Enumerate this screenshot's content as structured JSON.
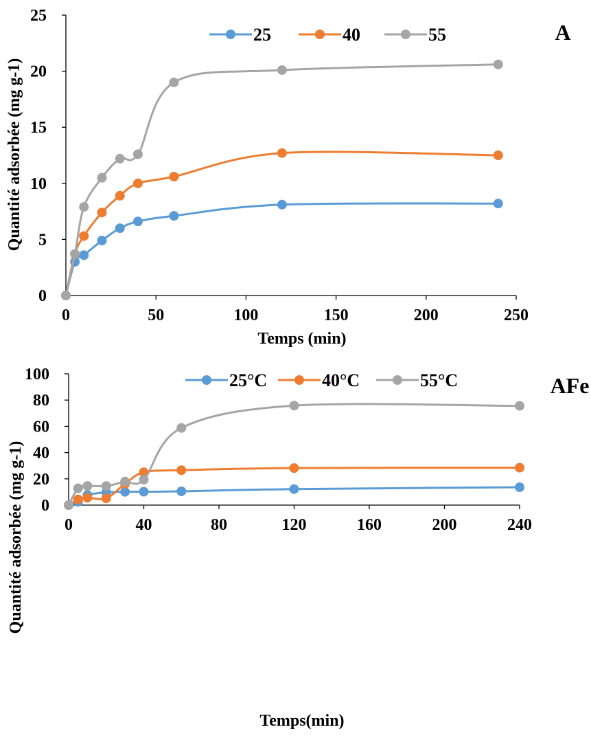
{
  "chart_data": [
    {
      "type": "line",
      "title": "A",
      "xlabel": "Temps (min)",
      "ylabel": "Quantité adsorbée (mg g-1)",
      "xlim": [
        0,
        250
      ],
      "ylim": [
        0,
        25
      ],
      "xticks": [
        0,
        50,
        100,
        150,
        200,
        250
      ],
      "yticks": [
        0,
        5,
        10,
        15,
        20,
        25
      ],
      "legend_position": "top",
      "grid": false,
      "x": [
        0,
        5,
        10,
        20,
        30,
        40,
        60,
        120,
        240
      ],
      "series": [
        {
          "name": "25",
          "color": "#5B9BD5",
          "values": [
            0,
            3.0,
            3.6,
            4.9,
            6.0,
            6.6,
            7.1,
            8.1,
            8.2
          ]
        },
        {
          "name": "40",
          "color": "#ED7D31",
          "values": [
            0,
            3.7,
            5.3,
            7.4,
            8.9,
            10.0,
            10.6,
            12.7,
            12.5
          ]
        },
        {
          "name": "55",
          "color": "#A5A5A5",
          "values": [
            0,
            3.7,
            7.9,
            10.5,
            12.2,
            12.6,
            19.0,
            20.1,
            20.6
          ]
        }
      ]
    },
    {
      "type": "line",
      "title": "AFe",
      "xlabel": "Temps(min)",
      "ylabel": "Quantité adsorbée (mg g-1)",
      "xlim": [
        0,
        240
      ],
      "ylim": [
        0,
        100
      ],
      "xticks": [
        0,
        40,
        80,
        120,
        160,
        200,
        240
      ],
      "yticks": [
        0,
        20,
        40,
        60,
        80,
        100
      ],
      "legend_position": "top",
      "grid": false,
      "x": [
        0,
        5,
        10,
        20,
        30,
        40,
        60,
        120,
        240
      ],
      "series": [
        {
          "name": "25°C",
          "color": "#5B9BD5",
          "values": [
            0,
            2.5,
            7.7,
            9.7,
            10.1,
            10.2,
            10.5,
            12.2,
            13.6
          ]
        },
        {
          "name": "40°C",
          "color": "#ED7D31",
          "values": [
            0,
            4.3,
            5.6,
            5.2,
            16.2,
            25.0,
            26.6,
            28.2,
            28.5
          ]
        },
        {
          "name": "55°C",
          "color": "#A5A5A5",
          "values": [
            0,
            12.8,
            14.6,
            14.5,
            17.9,
            19.4,
            58.8,
            75.8,
            75.6
          ]
        }
      ]
    }
  ]
}
